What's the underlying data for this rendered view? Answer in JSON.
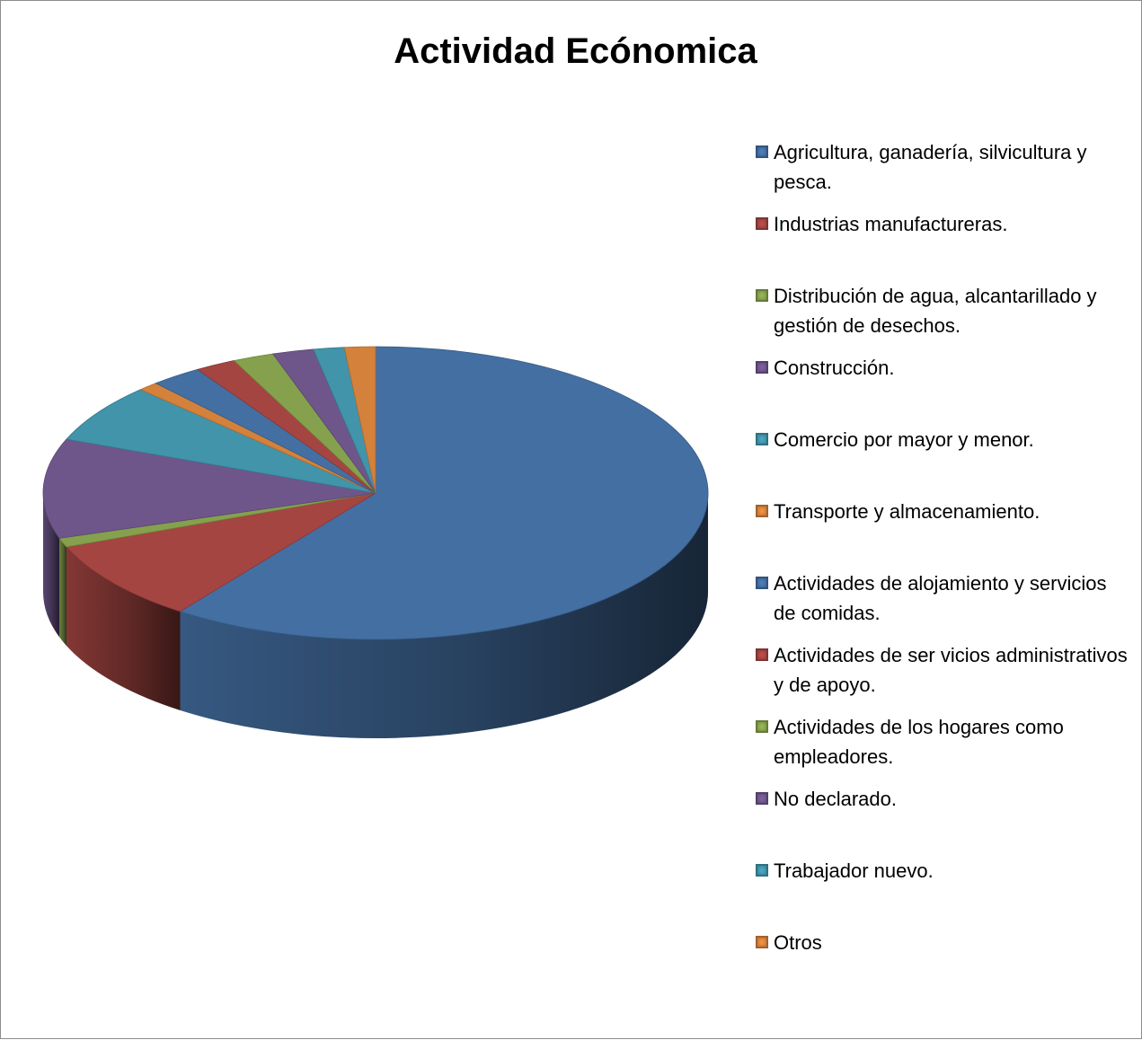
{
  "chart_data": {
    "type": "pie",
    "title": "Actividad Ecónomica",
    "legend_position": "right",
    "three_d": true,
    "slices": [
      {
        "label": "Agricultura, ganadería, silvicultura y pesca.",
        "value": 60.0,
        "color": "#4F81BD"
      },
      {
        "label": "Industrias manufactureras.",
        "value": 9.0,
        "color": "#C0504D"
      },
      {
        "label": "Distribución de agua, alcantarillado y gestión de desechos.",
        "value": 1.0,
        "color": "#9BBB59"
      },
      {
        "label": "Construcción.",
        "value": 11.0,
        "color": "#8064A2"
      },
      {
        "label": "Comercio por mayor y menor.",
        "value": 6.5,
        "color": "#4BACC6"
      },
      {
        "label": "Transporte y almacenamiento.",
        "value": 1.0,
        "color": "#F79646"
      },
      {
        "label": "Actividades de alojamiento y servicios de comidas.",
        "value": 2.5,
        "color": "#4F81BD"
      },
      {
        "label": "Actividades de ser vicios administrativos y de apoyo.",
        "value": 2.0,
        "color": "#C0504D"
      },
      {
        "label": "Actividades de los hogares como empleadores.",
        "value": 2.0,
        "color": "#9BBB59"
      },
      {
        "label": "No declarado.",
        "value": 2.0,
        "color": "#8064A2"
      },
      {
        "label": "Trabajador nuevo.",
        "value": 1.5,
        "color": "#4BACC6"
      },
      {
        "label": "Otros",
        "value": 1.5,
        "color": "#F79646"
      }
    ]
  }
}
